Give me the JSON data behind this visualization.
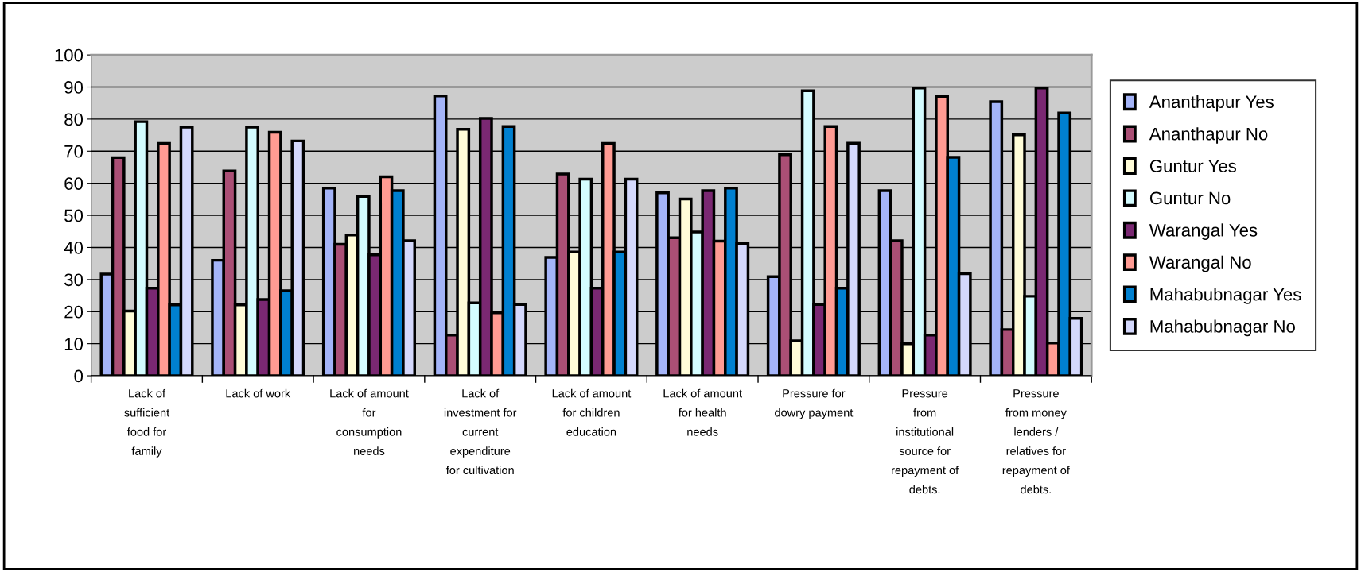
{
  "chart_data": {
    "type": "bar",
    "categories": [
      "Lack of\nsufficient\nfood for\nfamily",
      "Lack of work",
      "Lack of amount\nfor\nconsumption\nneeds",
      "Lack of\ninvestment for\ncurrent\nexpenditure\nfor cultivation",
      "Lack of amount\nfor children\neducation",
      "Lack of amount\nfor health\nneeds",
      "Pressure for\ndowry payment",
      "Pressure\nfrom\ninstitutional\nsource for\nrepayment of\ndebts.",
      "Pressure\nfrom money\nlenders /\nrelatives for\nrepayment of\ndebts."
    ],
    "series": [
      {
        "name": "Ananthapur Yes",
        "color": "#a4b4f8",
        "values": [
          31.7,
          36,
          58.5,
          87.2,
          36.9,
          57,
          30.9,
          57.7,
          85.4
        ]
      },
      {
        "name": "Ananthapur No",
        "color": "#aa4f75",
        "values": [
          68,
          63.8,
          41,
          12.7,
          62.9,
          43,
          68.9,
          42.1,
          14.4
        ]
      },
      {
        "name": "Guntur Yes",
        "color": "#fffcd8",
        "values": [
          20.2,
          22.1,
          43.9,
          76.8,
          38.6,
          55.1,
          10.9,
          10,
          75.1
        ]
      },
      {
        "name": "Guntur No",
        "color": "#d4fcff",
        "values": [
          79.2,
          77.5,
          55.9,
          22.7,
          61.3,
          44.8,
          88.8,
          89.7,
          24.8
        ]
      },
      {
        "name": "Warangal Yes",
        "color": "#7a2872",
        "values": [
          27.3,
          23.8,
          37.7,
          80.2,
          27.3,
          57.7,
          22.2,
          12.7,
          89.7
        ]
      },
      {
        "name": "Warangal No",
        "color": "#ff9b93",
        "values": [
          72.4,
          75.9,
          62,
          19.6,
          72.4,
          42,
          77.7,
          87.1,
          10.2
        ]
      },
      {
        "name": "Mahabubnagar Yes",
        "color": "#0080d0",
        "values": [
          22.1,
          26.5,
          57.7,
          77.7,
          38.6,
          58.5,
          27.3,
          68.1,
          81.9
        ]
      },
      {
        "name": "Mahabubnagar No",
        "color": "#d4d8fc",
        "values": [
          77.5,
          73.2,
          42.1,
          22.2,
          61.3,
          41.3,
          72.5,
          31.8,
          17.9
        ]
      }
    ],
    "ylim": [
      0,
      100
    ],
    "yticks": [
      0,
      10,
      20,
      30,
      40,
      50,
      60,
      70,
      80,
      90,
      100
    ],
    "grid": "y",
    "legend": "right"
  }
}
